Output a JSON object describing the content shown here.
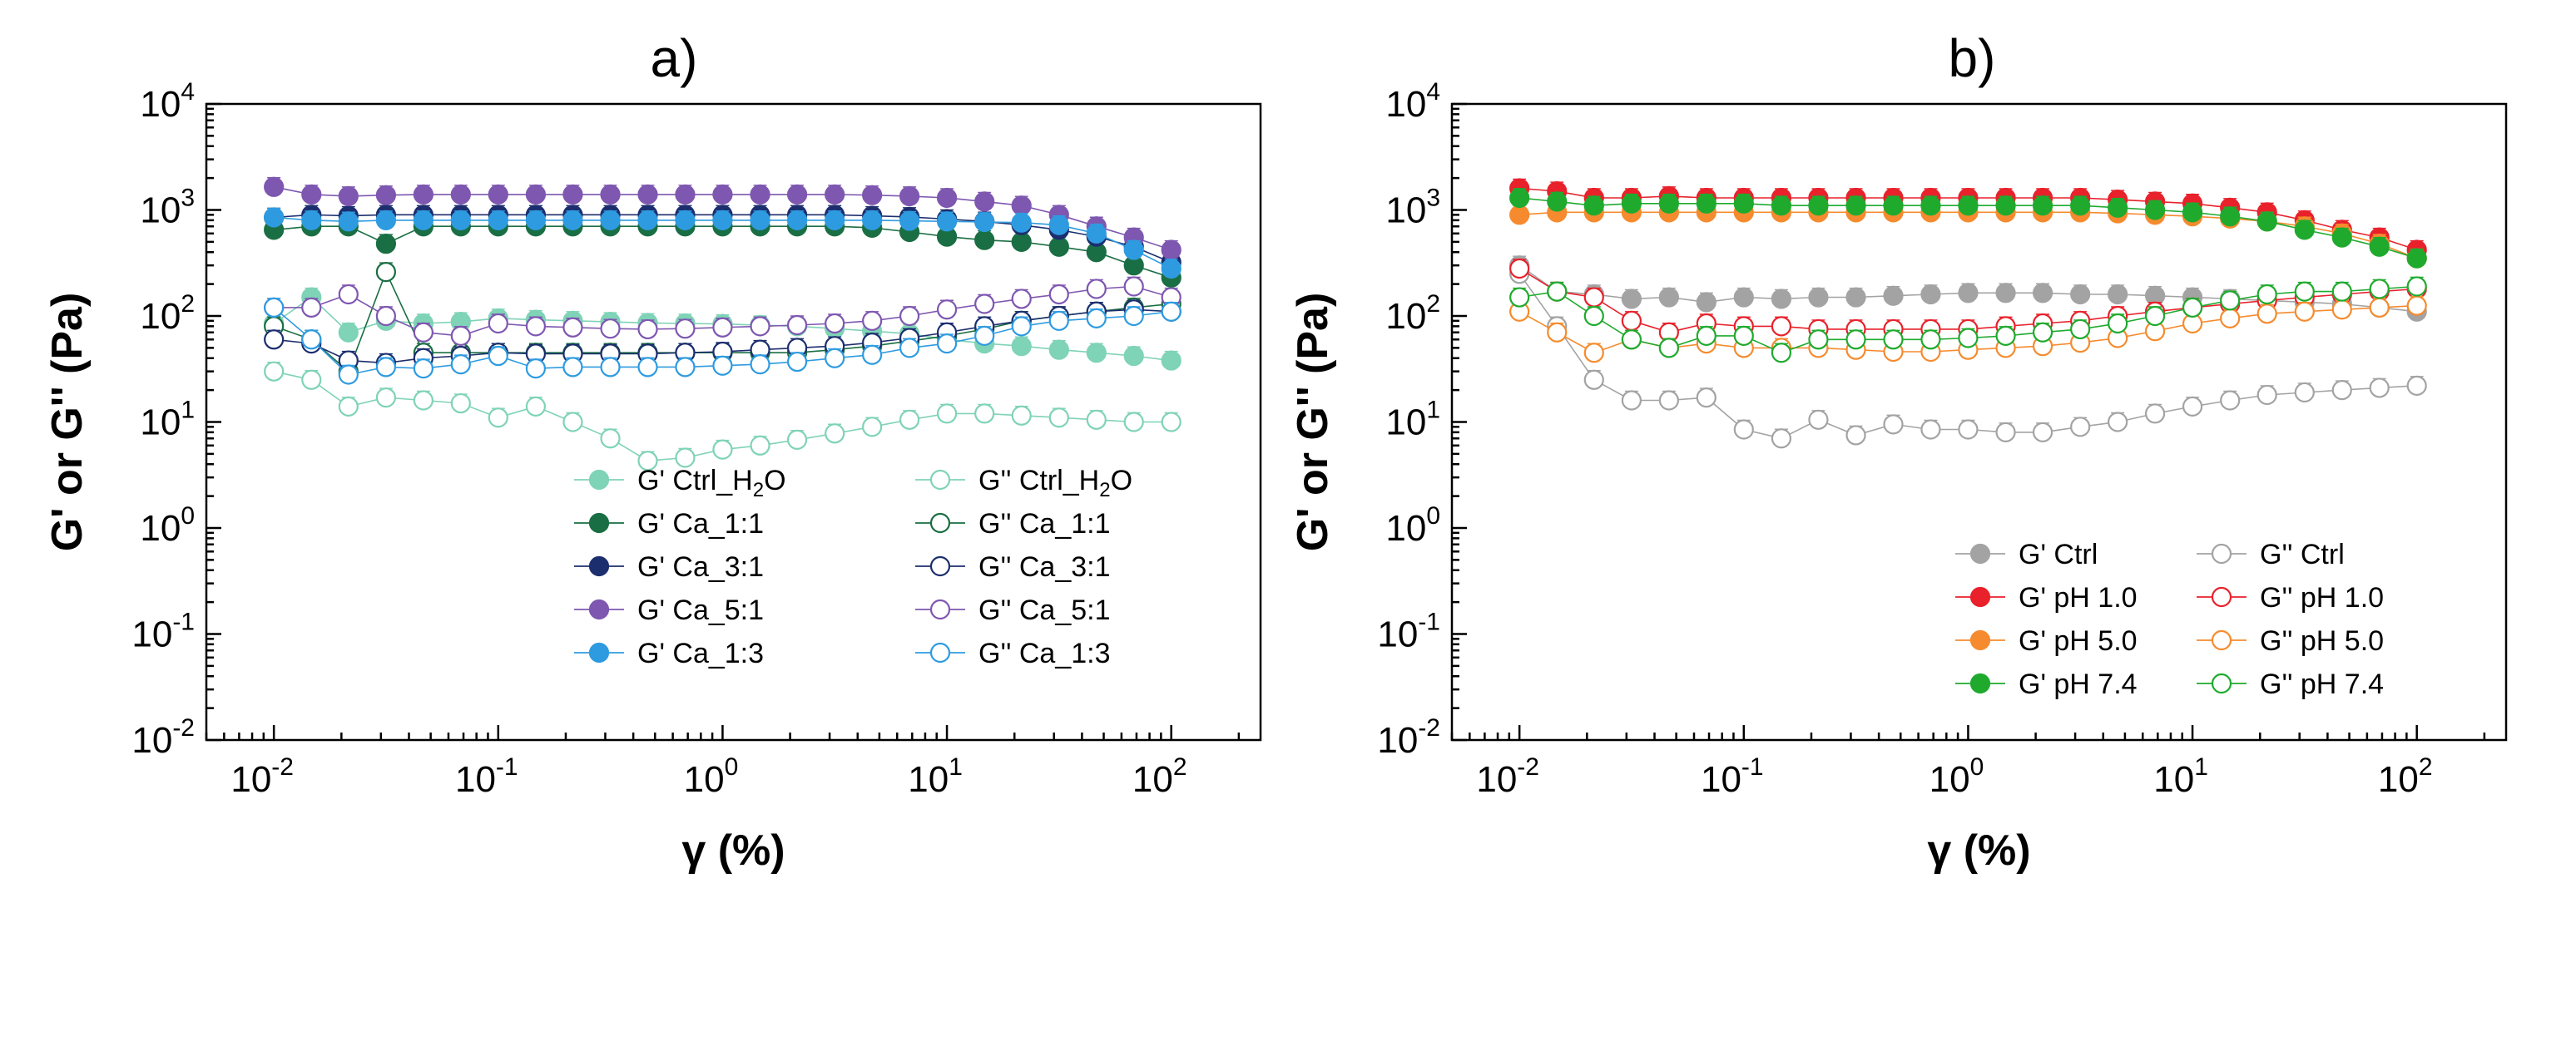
{
  "chart_data": [
    {
      "type": "scatter",
      "title": "a)",
      "xlabel": "γ (%)",
      "ylabel": "G' or G'' (Pa)",
      "xscale": "log",
      "yscale": "log",
      "xlim": [
        0.005,
        250
      ],
      "ylim": [
        0.01,
        10000
      ],
      "legend_position": "bottom-right",
      "x": [
        0.01,
        0.0147,
        0.0215,
        0.0316,
        0.0464,
        0.0681,
        0.1,
        0.147,
        0.215,
        0.316,
        0.464,
        0.681,
        1.0,
        1.47,
        2.15,
        3.16,
        4.64,
        6.81,
        10.0,
        14.7,
        21.5,
        31.6,
        46.4,
        68.1,
        100.0
      ],
      "series": [
        {
          "name": "G' Ctrl_H2O",
          "label_main": "G' Ctrl_H",
          "label_sub": "2",
          "label_tail": "O",
          "color": "#7fd3b6",
          "filled": true,
          "values": [
            85,
            150,
            70,
            90,
            85,
            88,
            95,
            92,
            90,
            88,
            86,
            85,
            84,
            82,
            80,
            76,
            72,
            68,
            60,
            55,
            52,
            48,
            45,
            42,
            38
          ]
        },
        {
          "name": "G'' Ctrl_H2O",
          "label_main": "G'' Ctrl_H",
          "label_sub": "2",
          "label_tail": "O",
          "color": "#7fd3b6",
          "filled": false,
          "values": [
            30,
            25,
            14,
            17,
            16,
            15,
            11,
            14,
            10,
            7,
            4.3,
            4.6,
            5.5,
            6,
            6.8,
            7.8,
            9,
            10.5,
            12,
            12,
            11.5,
            11,
            10.5,
            10,
            10
          ]
        },
        {
          "name": "G' Ca_1:1",
          "label_main": "G' Ca_1:1",
          "color": "#1a6e43",
          "filled": true,
          "values": [
            650,
            700,
            700,
            480,
            700,
            700,
            700,
            700,
            700,
            700,
            700,
            700,
            700,
            700,
            700,
            700,
            680,
            620,
            560,
            520,
            500,
            450,
            400,
            300,
            230
          ]
        },
        {
          "name": "G'' Ca_1:1",
          "label_main": "G'' Ca_1:1",
          "color": "#1a6e43",
          "filled": false,
          "values": [
            80,
            60,
            30,
            260,
            45,
            45,
            45,
            45,
            45,
            45,
            45,
            45,
            45,
            45,
            45,
            48,
            52,
            58,
            65,
            75,
            90,
            100,
            110,
            120,
            130
          ]
        },
        {
          "name": "G' Ca_3:1",
          "label_main": "G' Ca_3:1",
          "color": "#1c2e6e",
          "filled": true,
          "values": [
            850,
            900,
            880,
            900,
            900,
            900,
            900,
            900,
            900,
            900,
            900,
            900,
            900,
            900,
            900,
            900,
            880,
            860,
            820,
            780,
            720,
            650,
            560,
            450,
            320
          ]
        },
        {
          "name": "G'' Ca_3:1",
          "label_main": "G'' Ca_3:1",
          "color": "#1c2e6e",
          "filled": false,
          "values": [
            60,
            55,
            38,
            36,
            40,
            42,
            45,
            44,
            44,
            44,
            44,
            45,
            46,
            48,
            50,
            52,
            56,
            62,
            70,
            80,
            90,
            100,
            110,
            115,
            110
          ]
        },
        {
          "name": "G' Ca_5:1",
          "label_main": "G' Ca_5:1",
          "color": "#7e57b0",
          "filled": true,
          "values": [
            1650,
            1400,
            1350,
            1380,
            1400,
            1400,
            1400,
            1400,
            1400,
            1400,
            1400,
            1400,
            1400,
            1400,
            1400,
            1400,
            1380,
            1350,
            1300,
            1200,
            1100,
            900,
            700,
            550,
            420
          ]
        },
        {
          "name": "G'' Ca_5:1",
          "label_main": "G'' Ca_5:1",
          "color": "#7e57b0",
          "filled": false,
          "values": [
            120,
            120,
            160,
            100,
            70,
            65,
            85,
            80,
            78,
            76,
            75,
            76,
            78,
            80,
            82,
            85,
            90,
            100,
            115,
            130,
            145,
            160,
            180,
            190,
            150
          ]
        },
        {
          "name": "G' Ca_1:3",
          "label_main": "G' Ca_1:3",
          "color": "#2e9be0",
          "filled": true,
          "values": [
            850,
            800,
            780,
            800,
            800,
            800,
            800,
            800,
            800,
            800,
            800,
            800,
            800,
            800,
            800,
            800,
            800,
            790,
            780,
            770,
            760,
            720,
            600,
            420,
            280
          ]
        },
        {
          "name": "G'' Ca_1:3",
          "label_main": "G'' Ca_1:3",
          "color": "#2e9be0",
          "filled": false,
          "values": [
            120,
            60,
            28,
            33,
            32,
            35,
            42,
            32,
            33,
            33,
            33,
            33,
            34,
            35,
            37,
            40,
            43,
            50,
            55,
            65,
            80,
            90,
            95,
            100,
            110
          ]
        }
      ]
    },
    {
      "type": "scatter",
      "title": "b)",
      "xlabel": "γ (%)",
      "ylabel": "G' or G'' (Pa)",
      "xscale": "log",
      "yscale": "log",
      "xlim": [
        0.005,
        250
      ],
      "ylim": [
        0.01,
        10000
      ],
      "legend_position": "bottom-right",
      "x": [
        0.01,
        0.0147,
        0.0215,
        0.0316,
        0.0464,
        0.0681,
        0.1,
        0.147,
        0.215,
        0.316,
        0.464,
        0.681,
        1.0,
        1.47,
        2.15,
        3.16,
        4.64,
        6.81,
        10.0,
        14.7,
        21.5,
        31.6,
        46.4,
        68.1,
        100.0
      ],
      "series": [
        {
          "name": "G' Ctrl",
          "label_main": "G' Ctrl",
          "color": "#a3a3a3",
          "filled": true,
          "values": [
            300,
            170,
            160,
            145,
            150,
            135,
            150,
            145,
            150,
            150,
            155,
            160,
            165,
            165,
            165,
            160,
            160,
            155,
            150,
            145,
            140,
            135,
            130,
            120,
            110
          ]
        },
        {
          "name": "G'' Ctrl",
          "label_main": "G'' Ctrl",
          "color": "#a3a3a3",
          "filled": false,
          "values": [
            250,
            80,
            25,
            16,
            16,
            17,
            8.5,
            7,
            10.5,
            7.5,
            9.5,
            8.5,
            8.5,
            8,
            8,
            9,
            10,
            12,
            14,
            16,
            18,
            19,
            20,
            21,
            22
          ]
        },
        {
          "name": "G' pH 1.0",
          "label_main": "G' pH 1.0",
          "color": "#e8212b",
          "filled": true,
          "values": [
            1600,
            1500,
            1300,
            1300,
            1350,
            1300,
            1300,
            1300,
            1300,
            1300,
            1300,
            1300,
            1300,
            1300,
            1300,
            1300,
            1250,
            1200,
            1150,
            1050,
            950,
            800,
            650,
            550,
            420
          ]
        },
        {
          "name": "G'' pH 1.0",
          "label_main": "G'' pH 1.0",
          "color": "#e8212b",
          "filled": false,
          "values": [
            280,
            170,
            150,
            90,
            70,
            85,
            80,
            80,
            75,
            75,
            75,
            75,
            75,
            80,
            85,
            90,
            100,
            110,
            120,
            130,
            140,
            150,
            160,
            170,
            180
          ]
        },
        {
          "name": "G' pH 5.0",
          "label_main": "G' pH 5.0",
          "color": "#f58b2e",
          "filled": true,
          "values": [
            900,
            950,
            950,
            950,
            950,
            950,
            950,
            950,
            950,
            950,
            950,
            950,
            950,
            950,
            950,
            950,
            930,
            900,
            870,
            830,
            780,
            700,
            600,
            480,
            350
          ]
        },
        {
          "name": "G'' pH 5.0",
          "label_main": "G'' pH 5.0",
          "color": "#f58b2e",
          "filled": false,
          "values": [
            110,
            70,
            45,
            60,
            50,
            55,
            50,
            50,
            50,
            48,
            46,
            46,
            48,
            50,
            52,
            56,
            62,
            72,
            85,
            95,
            105,
            110,
            115,
            120,
            125
          ]
        },
        {
          "name": "G' pH 7.4",
          "label_main": "G' pH 7.4",
          "color": "#1faa2e",
          "filled": true,
          "values": [
            1300,
            1200,
            1100,
            1150,
            1150,
            1150,
            1150,
            1100,
            1100,
            1100,
            1100,
            1100,
            1100,
            1100,
            1100,
            1100,
            1050,
            1000,
            950,
            870,
            780,
            650,
            550,
            450,
            350
          ]
        },
        {
          "name": "G'' pH 7.4",
          "label_main": "G'' pH 7.4",
          "color": "#1faa2e",
          "filled": false,
          "values": [
            150,
            170,
            100,
            60,
            50,
            65,
            65,
            45,
            60,
            60,
            60,
            60,
            62,
            65,
            70,
            75,
            85,
            100,
            120,
            140,
            160,
            170,
            170,
            180,
            190
          ]
        }
      ]
    }
  ]
}
